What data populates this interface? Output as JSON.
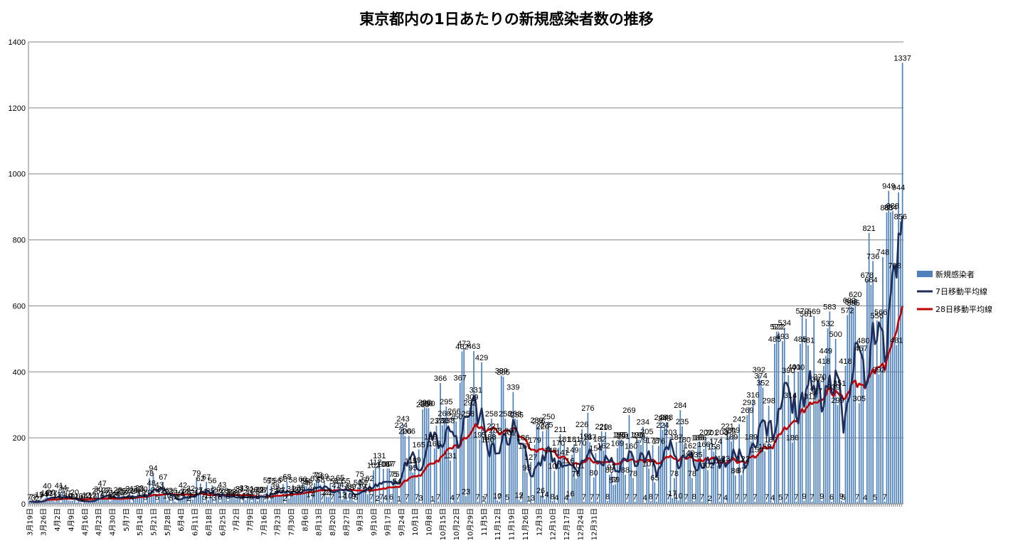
{
  "chart_data": {
    "type": "bar",
    "title": "東京都内の1日あたりの新規感染者数の推移",
    "xlabel": "",
    "ylabel": "",
    "ylim": [
      0,
      1400
    ],
    "yticks": [
      0,
      200,
      400,
      600,
      800,
      1000,
      1200,
      1400
    ],
    "x_start": "2020-03-19",
    "x_end": "2020-12-31",
    "date_tick_labels": [
      "3月19日",
      "3月26日",
      "4月2日",
      "4月9日",
      "4月16日",
      "4月23日",
      "4月30日",
      "5月7日",
      "5月14日",
      "5月21日",
      "5月28日",
      "6月4日",
      "6月11日",
      "6月18日",
      "6月25日",
      "7月2日",
      "7月9日",
      "7月16日",
      "7月23日",
      "7月30日",
      "8月6日",
      "8月13日",
      "8月20日",
      "8月27日",
      "9月3日",
      "9月10日",
      "9月17日",
      "9月24日",
      "10月1日",
      "10月8日",
      "10月15日",
      "10月22日",
      "10月29日",
      "11月5日",
      "11月12日",
      "11月19日",
      "11月26日",
      "12月3日",
      "12月10日",
      "12月17日",
      "12月24日",
      "12月31日"
    ],
    "grid": true,
    "legend_position": "right",
    "series": [
      {
        "name": "新規感染者",
        "type": "bar",
        "color": "#4f81bd",
        "values": [
          7,
          7,
          3,
          7,
          2,
          13,
          7,
          14,
          18,
          40,
          17,
          20,
          17,
          7,
          13,
          41,
          5,
          34,
          27,
          17,
          10,
          9,
          9,
          20,
          4,
          10,
          4,
          1,
          7,
          12,
          11,
          7,
          12,
          7,
          25,
          30,
          10,
          47,
          17,
          27,
          26,
          8,
          12,
          19,
          14,
          28,
          22,
          25,
          20,
          12,
          26,
          31,
          4,
          26,
          24,
          31,
          33,
          18,
          30,
          5,
          20,
          78,
          48,
          94,
          28,
          5,
          43,
          30,
          67,
          26,
          10,
          23,
          3,
          26,
          7,
          4,
          19,
          14,
          42,
          24,
          23,
          2,
          32,
          13,
          21,
          79,
          27,
          62,
          24,
          5,
          67,
          11,
          25,
          56,
          3,
          29,
          22,
          6,
          43,
          26,
          23,
          9,
          20,
          23,
          18,
          14,
          28,
          31,
          4,
          33,
          11,
          20,
          31,
          6,
          28,
          23,
          8,
          29,
          28,
          27,
          7,
          57,
          10,
          55,
          23,
          39,
          56,
          25,
          27,
          60,
          2,
          68,
          16,
          31,
          58,
          24,
          30,
          28,
          35,
          60,
          55,
          54,
          48,
          14,
          30,
          63,
          71,
          73,
          58,
          7,
          69,
          22,
          21,
          62,
          7,
          54,
          41,
          55,
          65,
          13,
          43,
          55,
          10,
          35,
          39,
          9,
          5,
          50,
          75,
          39,
          51,
          57,
          29,
          62,
          7,
          102,
          112,
          2,
          131,
          7,
          106,
          4,
          107,
          107,
          6,
          75,
          75,
          54,
          1,
          224,
          243,
          206,
          7,
          206,
          115,
          95,
          119,
          7,
          165,
          3,
          286,
          293,
          290,
          290,
          188,
          1,
          168,
          237,
          7,
          366,
          238,
          260,
          295,
          238,
          131,
          4,
          266,
          250,
          7,
          367,
          462,
          472,
          23,
          258,
          292,
          309,
          463,
          331,
          7,
          195,
          429,
          1,
          7,
          180,
          188,
          258,
          221,
          208,
          10,
          7,
          389,
          385,
          258,
          5,
          201,
          207,
          339,
          258,
          255,
          12,
          7,
          186,
          161,
          95,
          1,
          127,
          3,
          179,
          239,
          236,
          26,
          220,
          14,
          225,
          250,
          148,
          8,
          100,
          4,
          170,
          211,
          141,
          181,
          4,
          116,
          16,
          149,
          181,
          76,
          101,
          170,
          226,
          7,
          191,
          276,
          187,
          7,
          80,
          154,
          7,
          182,
          220,
          162,
          218,
          8,
          88,
          97,
          57,
          59,
          169,
          195,
          195,
          191,
          88,
          7,
          269,
          160,
          78,
          7,
          195,
          194,
          179,
          234,
          4,
          205,
          107,
          8,
          178,
          65,
          7,
          176,
          248,
          224,
          245,
          248,
          7,
          203,
          17,
          78,
          187,
          10,
          284,
          235,
          180,
          7,
          140,
          162,
          78,
          8,
          135,
          186,
          186,
          7,
          166,
          202,
          102,
          2,
          201,
          158,
          174,
          116,
          7,
          203,
          123,
          4,
          221,
          205,
          189,
          209,
          86,
          7,
          242,
          87,
          122,
          7,
          269,
          293,
          189,
          316,
          7,
          150,
          392,
          374,
          352,
          159,
          7,
          298,
          180,
          4,
          485,
          522,
          522,
          5,
          493,
          534,
          7,
          390,
          314,
          186,
          401,
          7,
          400,
          485,
          570,
          9,
          561,
          481,
          311,
          7,
          569,
          327,
          363,
          370,
          9,
          418,
          449,
          532,
          583,
          6,
          339,
          500,
          299,
          351,
          9,
          5,
          418,
          572,
          602,
          598,
          595,
          620,
          7,
          305,
          457,
          480,
          4,
          678,
          821,
          664,
          736,
          5,
          556,
          392,
          566,
          748,
          7,
          883,
          949,
          884,
          888,
          708,
          481,
          944,
          856,
          1337
        ]
      },
      {
        "name": "7日移動平均線",
        "type": "line",
        "color": "#1f2d5a"
      },
      {
        "name": "28日移動平均線",
        "type": "line",
        "color": "#c00000"
      }
    ]
  }
}
